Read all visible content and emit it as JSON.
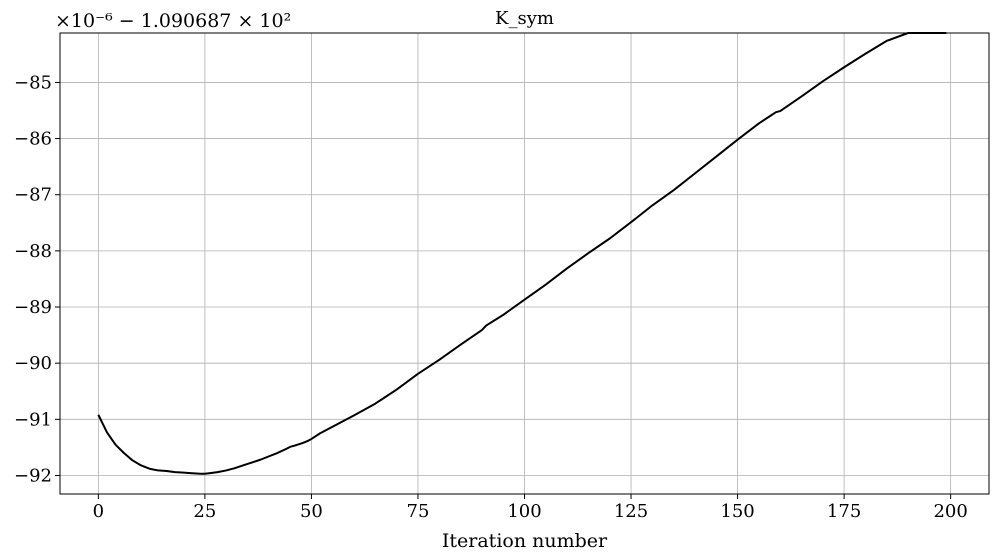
{
  "chart_data": {
    "type": "line",
    "title": "K_sym",
    "xlabel": "Iteration number",
    "ylabel": "",
    "offset_text": "×10⁻⁶ − 1.090687 × 10²",
    "xlim": [
      -9,
      209
    ],
    "ylim": [
      -92.33,
      -84.12
    ],
    "x_ticks": [
      0,
      25,
      50,
      75,
      100,
      125,
      150,
      175,
      200
    ],
    "x_tick_labels": [
      "0",
      "25",
      "50",
      "75",
      "100",
      "125",
      "150",
      "175",
      "200"
    ],
    "y_ticks": [
      -92,
      -91,
      -90,
      -89,
      -88,
      -87,
      -86,
      -85
    ],
    "y_tick_labels": [
      "−92",
      "−91",
      "−90",
      "−89",
      "−88",
      "−87",
      "−86",
      "−85"
    ],
    "grid": true,
    "series": [
      {
        "color": "#000000",
        "x": [
          0,
          2,
          4,
          6,
          8,
          10,
          12,
          14,
          16,
          18,
          20,
          22,
          24,
          25,
          26,
          28,
          30,
          32,
          34,
          36,
          38,
          40,
          42,
          44,
          45,
          46,
          48,
          49,
          50,
          52,
          55,
          60,
          65,
          70,
          75,
          80,
          85,
          90,
          91,
          95,
          100,
          105,
          110,
          115,
          120,
          125,
          130,
          135,
          140,
          145,
          150,
          155,
          158,
          159,
          160,
          165,
          170,
          175,
          180,
          185,
          190,
          195,
          199
        ],
        "y": [
          -90.92,
          -91.23,
          -91.45,
          -91.6,
          -91.73,
          -91.82,
          -91.88,
          -91.91,
          -91.92,
          -91.94,
          -91.95,
          -91.96,
          -91.97,
          -91.97,
          -91.96,
          -91.94,
          -91.91,
          -91.87,
          -91.82,
          -91.77,
          -91.72,
          -91.66,
          -91.6,
          -91.53,
          -91.49,
          -91.47,
          -91.42,
          -91.39,
          -91.35,
          -91.25,
          -91.13,
          -90.93,
          -90.72,
          -90.47,
          -90.19,
          -89.94,
          -89.67,
          -89.41,
          -89.33,
          -89.14,
          -88.87,
          -88.6,
          -88.31,
          -88.04,
          -87.78,
          -87.49,
          -87.19,
          -86.92,
          -86.62,
          -86.32,
          -86.02,
          -85.73,
          -85.58,
          -85.53,
          -85.51,
          -85.25,
          -84.98,
          -84.73,
          -84.49,
          -84.26,
          -84.03,
          -83.82,
          -83.68
        ]
      }
    ]
  }
}
